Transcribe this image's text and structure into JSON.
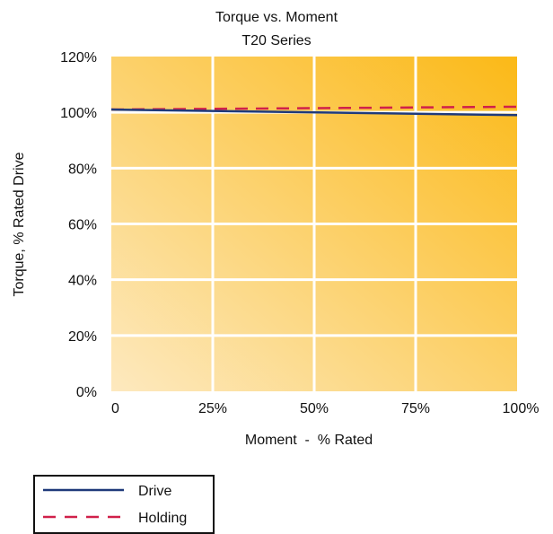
{
  "chart_data": {
    "type": "line",
    "title": "Torque vs. Moment",
    "subtitle": "T20 Series",
    "xlabel": "Moment  -  % Rated",
    "ylabel": "Torque, % Rated Drive",
    "x_ticks": [
      "0",
      "25%",
      "50%",
      "75%",
      "100%"
    ],
    "y_ticks": [
      "0%",
      "20%",
      "40%",
      "60%",
      "80%",
      "100%",
      "120%"
    ],
    "xlim": [
      0,
      100
    ],
    "ylim": [
      0,
      120
    ],
    "grid": true,
    "legend_position": "bottom-left",
    "series": [
      {
        "name": "Drive",
        "x": [
          0,
          100
        ],
        "y": [
          101,
          99
        ],
        "color": "#1f3a7a",
        "style": "solid"
      },
      {
        "name": "Holding",
        "x": [
          0,
          100
        ],
        "y": [
          101,
          102
        ],
        "color": "#d0204a",
        "style": "dashed"
      }
    ],
    "background_gradient": [
      "#fde9bf",
      "#fbb917"
    ],
    "grid_color": "#ffffff"
  }
}
